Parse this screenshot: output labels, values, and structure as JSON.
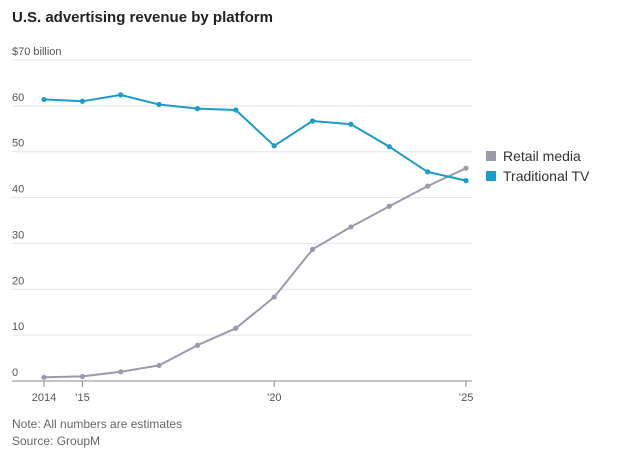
{
  "title": "U.S. advertising revenue by platform",
  "note": "Note: All numbers are estimates",
  "source": "Source: GroupM",
  "chart_data": {
    "type": "line",
    "title": "U.S. advertising revenue by platform",
    "x": [
      2014,
      2015,
      2016,
      2017,
      2018,
      2019,
      2020,
      2021,
      2022,
      2023,
      2024,
      2025
    ],
    "x_tick_values": [
      2014,
      2015,
      2020,
      2025
    ],
    "x_tick_labels": [
      "2014",
      "’15",
      "’20",
      "’25"
    ],
    "ylim": [
      0,
      70
    ],
    "y_ticks": [
      0,
      10,
      20,
      30,
      40,
      50,
      60,
      70
    ],
    "y_tick_labels": [
      "0",
      "10",
      "20",
      "30",
      "40",
      "50",
      "60",
      "$70 billion"
    ],
    "grid": true,
    "legend_position": "right",
    "series": [
      {
        "name": "Retail media",
        "color": "#9b9aad",
        "values": [
          0.8,
          1.0,
          2.0,
          3.4,
          7.8,
          11.5,
          18.3,
          28.7,
          33.6,
          38.1,
          42.5,
          46.4
        ]
      },
      {
        "name": "Traditional TV",
        "color": "#1a9cc9",
        "values": [
          61.4,
          61.0,
          62.4,
          60.3,
          59.4,
          59.1,
          51.3,
          56.7,
          56.0,
          51.1,
          45.6,
          43.7
        ]
      }
    ]
  }
}
